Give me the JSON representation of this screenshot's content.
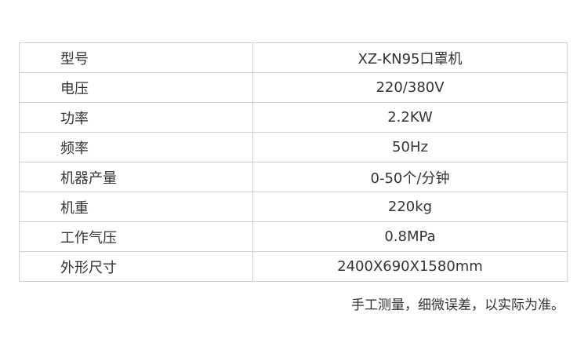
{
  "specs": [
    {
      "label": "型号",
      "value": "XZ-KN95口罩机"
    },
    {
      "label": "电压",
      "value": "220/380V"
    },
    {
      "label": "功率",
      "value": "2.2KW"
    },
    {
      "label": "频率",
      "value": "50Hz"
    },
    {
      "label": "机器产量",
      "value": "0-50个/分钟"
    },
    {
      "label": "机重",
      "value": "220kg"
    },
    {
      "label": "工作气压",
      "value": "0.8MPa"
    },
    {
      "label": "外形尺寸",
      "value": "2400X690X1580mm"
    }
  ],
  "note": "手工测量，细微误差，以实际为准。"
}
